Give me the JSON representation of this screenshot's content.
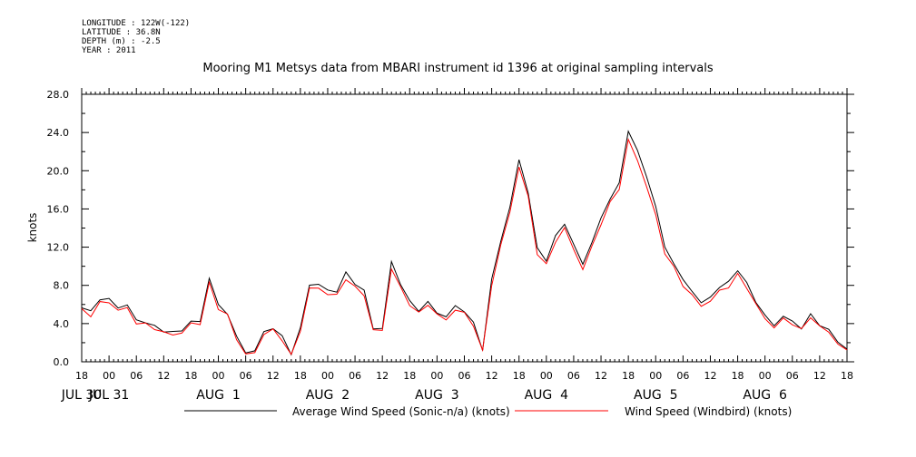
{
  "header": {
    "longitude": "LONGITUDE : 122W(-122)",
    "latitude": "LATITUDE : 36.8N",
    "depth": "DEPTH (m) : -2.5",
    "year": "YEAR : 2011"
  },
  "chart_data": {
    "type": "line",
    "title": "Mooring M1 Metsys data from MBARI instrument id 1396 at original sampling intervals",
    "ylabel": "knots",
    "xlabel": "",
    "ylim": [
      0,
      28
    ],
    "yticks": [
      "0.0",
      "4.0",
      "8.0",
      "12.0",
      "16.0",
      "20.0",
      "24.0",
      "28.0"
    ],
    "xlim_hours": [
      0,
      168
    ],
    "x_tick_labels": [
      "18",
      "00",
      "06",
      "12",
      "18",
      "00",
      "06",
      "12",
      "18",
      "00",
      "06",
      "12",
      "18",
      "00",
      "06",
      "12",
      "18",
      "00",
      "06",
      "12",
      "18",
      "00",
      "06",
      "12",
      "18",
      "00",
      "06",
      "12",
      "18"
    ],
    "day_labels": [
      "JUL 30",
      "JUL 31",
      "AUG  1",
      "AUG  2",
      "AUG  3",
      "AUG  4",
      "AUG  5",
      "AUG  6"
    ],
    "day_label_hours": [
      0,
      6,
      30,
      54,
      78,
      102,
      126,
      150
    ],
    "x_start": "2011-07-30 18:00",
    "series": [
      {
        "name": "Average Wind Speed (Sonic-n/a) (knots)",
        "color": "#000000",
        "x": [
          0,
          2,
          4,
          6,
          8,
          10,
          12,
          14,
          16,
          18,
          20,
          22,
          24,
          26,
          28,
          30,
          32,
          34,
          36,
          38,
          40,
          42,
          44,
          46,
          48,
          50,
          52,
          54,
          56,
          58,
          60,
          62,
          64,
          66,
          68,
          70,
          72,
          74,
          76,
          78,
          80,
          82,
          84,
          86,
          88,
          90,
          92,
          94,
          96,
          98,
          100,
          102,
          104,
          106,
          108,
          110,
          112,
          114,
          116,
          118,
          120,
          122,
          124,
          126,
          128,
          130,
          132,
          134,
          136,
          138,
          140,
          142,
          144,
          146,
          148,
          150,
          152,
          154,
          156,
          158,
          160,
          162,
          164,
          166,
          168
        ],
        "y": [
          5.5,
          5.2,
          6.8,
          6.5,
          5.8,
          5.6,
          4.5,
          4.2,
          3.8,
          3.2,
          2.8,
          3.5,
          4.2,
          4.4,
          8.6,
          5.8,
          5.2,
          2.6,
          1.2,
          0.8,
          3.2,
          3.5,
          2.8,
          0.9,
          3.2,
          8.2,
          8.0,
          7.8,
          7.2,
          9.2,
          8.2,
          7.4,
          3.8,
          3.2,
          10.5,
          8.0,
          6.5,
          5.5,
          6.0,
          5.2,
          4.5,
          6.2,
          5.2,
          4.0,
          1.2,
          8.5,
          13.0,
          16.0,
          21.2,
          17.5,
          12.0,
          10.8,
          13.0,
          14.5,
          12.0,
          10.5,
          12.5,
          15.0,
          17.0,
          18.5,
          24.5,
          22.0,
          19.5,
          16.0,
          12.0,
          10.5,
          8.5,
          7.5,
          5.8,
          7.0,
          7.8,
          8.5,
          9.5,
          8.0,
          6.5,
          4.8,
          4.0,
          4.5,
          4.2,
          3.6,
          5.0,
          4.0,
          3.0,
          2.2,
          1.3
        ]
      },
      {
        "name": "Wind Speed (Windbird) (knots)",
        "color": "#ff0000",
        "x": [
          0,
          2,
          4,
          6,
          8,
          10,
          12,
          14,
          16,
          18,
          20,
          22,
          24,
          26,
          28,
          30,
          32,
          34,
          36,
          38,
          40,
          42,
          44,
          46,
          48,
          50,
          52,
          54,
          56,
          58,
          60,
          62,
          64,
          66,
          68,
          70,
          72,
          74,
          76,
          78,
          80,
          82,
          84,
          86,
          88,
          90,
          92,
          94,
          96,
          98,
          100,
          102,
          104,
          106,
          108,
          110,
          112,
          114,
          116,
          118,
          120,
          122,
          124,
          126,
          128,
          130,
          132,
          134,
          136,
          138,
          140,
          142,
          144,
          146,
          148,
          150,
          152,
          154,
          156,
          158,
          160,
          162,
          164,
          166,
          168
        ],
        "y": [
          5.2,
          4.8,
          6.4,
          6.2,
          5.5,
          5.3,
          4.2,
          4.0,
          3.6,
          3.0,
          2.6,
          3.2,
          4.0,
          4.2,
          8.0,
          5.5,
          5.0,
          2.4,
          1.0,
          0.6,
          3.0,
          3.3,
          2.5,
          0.7,
          3.0,
          7.8,
          7.6,
          7.4,
          6.8,
          8.6,
          7.8,
          7.0,
          3.6,
          3.0,
          9.8,
          7.6,
          6.2,
          5.2,
          5.8,
          5.0,
          4.2,
          5.8,
          5.0,
          3.8,
          1.0,
          8.0,
          12.5,
          15.5,
          20.5,
          17.0,
          11.5,
          10.3,
          12.5,
          14.0,
          11.5,
          10.0,
          12.0,
          14.5,
          16.5,
          18.0,
          23.5,
          21.0,
          18.5,
          15.0,
          11.5,
          10.0,
          8.0,
          7.0,
          5.5,
          6.6,
          7.4,
          8.0,
          9.0,
          7.6,
          6.2,
          4.5,
          3.8,
          4.2,
          4.0,
          3.4,
          4.8,
          3.8,
          2.8,
          2.0,
          1.1
        ]
      }
    ]
  }
}
